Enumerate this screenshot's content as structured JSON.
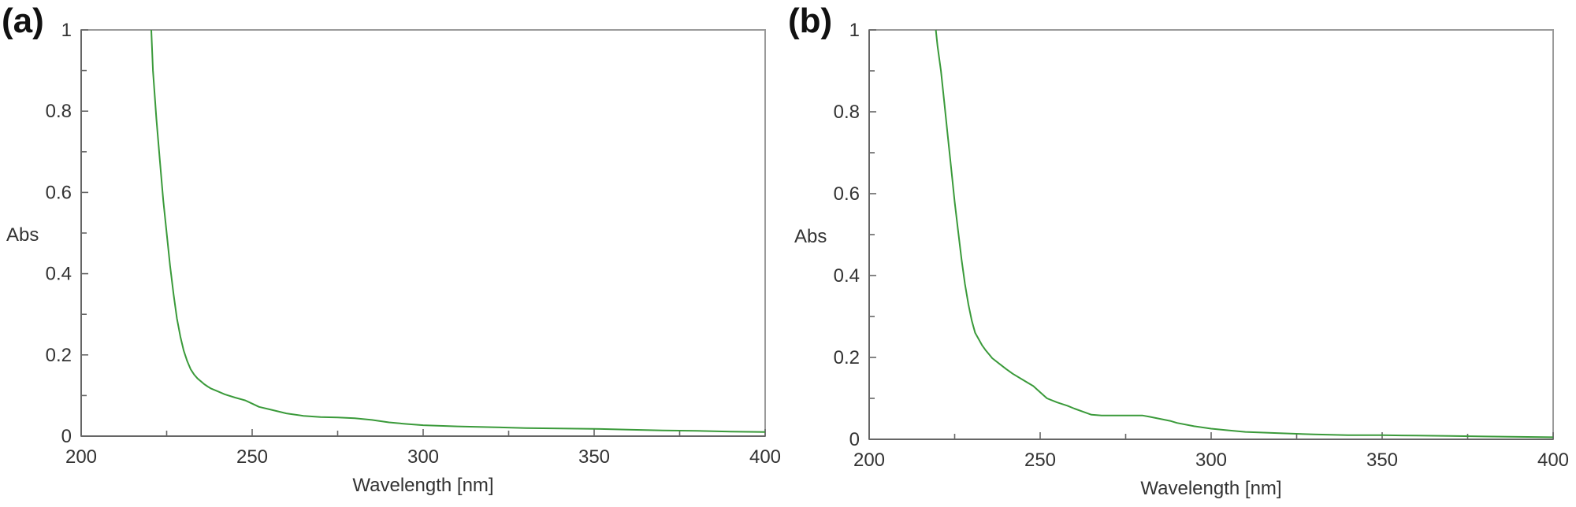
{
  "panels": [
    {
      "label": "(a)",
      "chart_data": {
        "type": "line",
        "title": "",
        "xlabel": "Wavelength [nm]",
        "ylabel": "Abs",
        "xlim": [
          200,
          400
        ],
        "ylim": [
          0,
          1
        ],
        "xticks": [
          200,
          250,
          300,
          350,
          400
        ],
        "xtick_labels": [
          "200",
          "250",
          "300",
          "350",
          "400"
        ],
        "yticks": [
          0,
          0.2,
          0.4,
          0.6,
          0.8,
          1
        ],
        "ytick_labels": [
          "0",
          "0.2",
          "0.4",
          "0.6",
          "0.8",
          "1"
        ],
        "grid": false,
        "legend": "none",
        "line_color": "#3a9a3a",
        "series": [
          {
            "x": [
              220.5,
              221,
              222,
              223,
              224,
              225,
              226,
              227,
              228,
              229,
              230,
              231,
              232,
              233,
              234,
              235,
              236,
              237,
              238,
              240,
              242,
              245,
              248,
              250,
              252,
              255,
              258,
              260,
              265,
              270,
              275,
              280,
              285,
              290,
              295,
              300,
              310,
              320,
              330,
              340,
              350,
              360,
              370,
              380,
              390,
              400
            ],
            "y": [
              1.0,
              0.9,
              0.78,
              0.68,
              0.58,
              0.5,
              0.42,
              0.35,
              0.29,
              0.245,
              0.21,
              0.185,
              0.165,
              0.152,
              0.142,
              0.135,
              0.128,
              0.122,
              0.117,
              0.11,
              0.103,
              0.095,
              0.088,
              0.08,
              0.072,
              0.066,
              0.06,
              0.056,
              0.05,
              0.047,
              0.046,
              0.044,
              0.04,
              0.034,
              0.03,
              0.027,
              0.024,
              0.022,
              0.02,
              0.019,
              0.018,
              0.016,
              0.014,
              0.013,
              0.011,
              0.01
            ]
          }
        ]
      }
    },
    {
      "label": "(b)",
      "chart_data": {
        "type": "line",
        "title": "",
        "xlabel": "Wavelength [nm]",
        "ylabel": "Abs",
        "xlim": [
          200,
          400
        ],
        "ylim": [
          0,
          1
        ],
        "xticks": [
          200,
          250,
          300,
          350,
          400
        ],
        "xtick_labels": [
          "200",
          "250",
          "300",
          "350",
          "400"
        ],
        "yticks": [
          0,
          0.2,
          0.4,
          0.6,
          0.8,
          1
        ],
        "ytick_labels": [
          "0",
          "0.2",
          "0.4",
          "0.6",
          "0.8",
          "1"
        ],
        "grid": false,
        "legend": "none",
        "line_color": "#3a9a3a",
        "series": [
          {
            "x": [
              219.5,
              220,
              221,
              222,
              223,
              224,
              225,
              226,
              227,
              228,
              229,
              230,
              231,
              232,
              233,
              234,
              235,
              236,
              238,
              240,
              242,
              245,
              248,
              250,
              252,
              255,
              258,
              260,
              263,
              265,
              268,
              270,
              275,
              280,
              282,
              285,
              288,
              290,
              295,
              300,
              305,
              310,
              320,
              330,
              340,
              350,
              360,
              370,
              380,
              390,
              400
            ],
            "y": [
              1.0,
              0.96,
              0.9,
              0.82,
              0.74,
              0.66,
              0.58,
              0.51,
              0.44,
              0.38,
              0.33,
              0.29,
              0.26,
              0.245,
              0.23,
              0.218,
              0.208,
              0.198,
              0.185,
              0.172,
              0.16,
              0.145,
              0.13,
              0.115,
              0.1,
              0.09,
              0.082,
              0.075,
              0.066,
              0.06,
              0.058,
              0.058,
              0.058,
              0.058,
              0.055,
              0.05,
              0.045,
              0.04,
              0.032,
              0.026,
              0.022,
              0.018,
              0.015,
              0.012,
              0.01,
              0.01,
              0.009,
              0.008,
              0.007,
              0.006,
              0.005
            ]
          }
        ]
      }
    }
  ]
}
